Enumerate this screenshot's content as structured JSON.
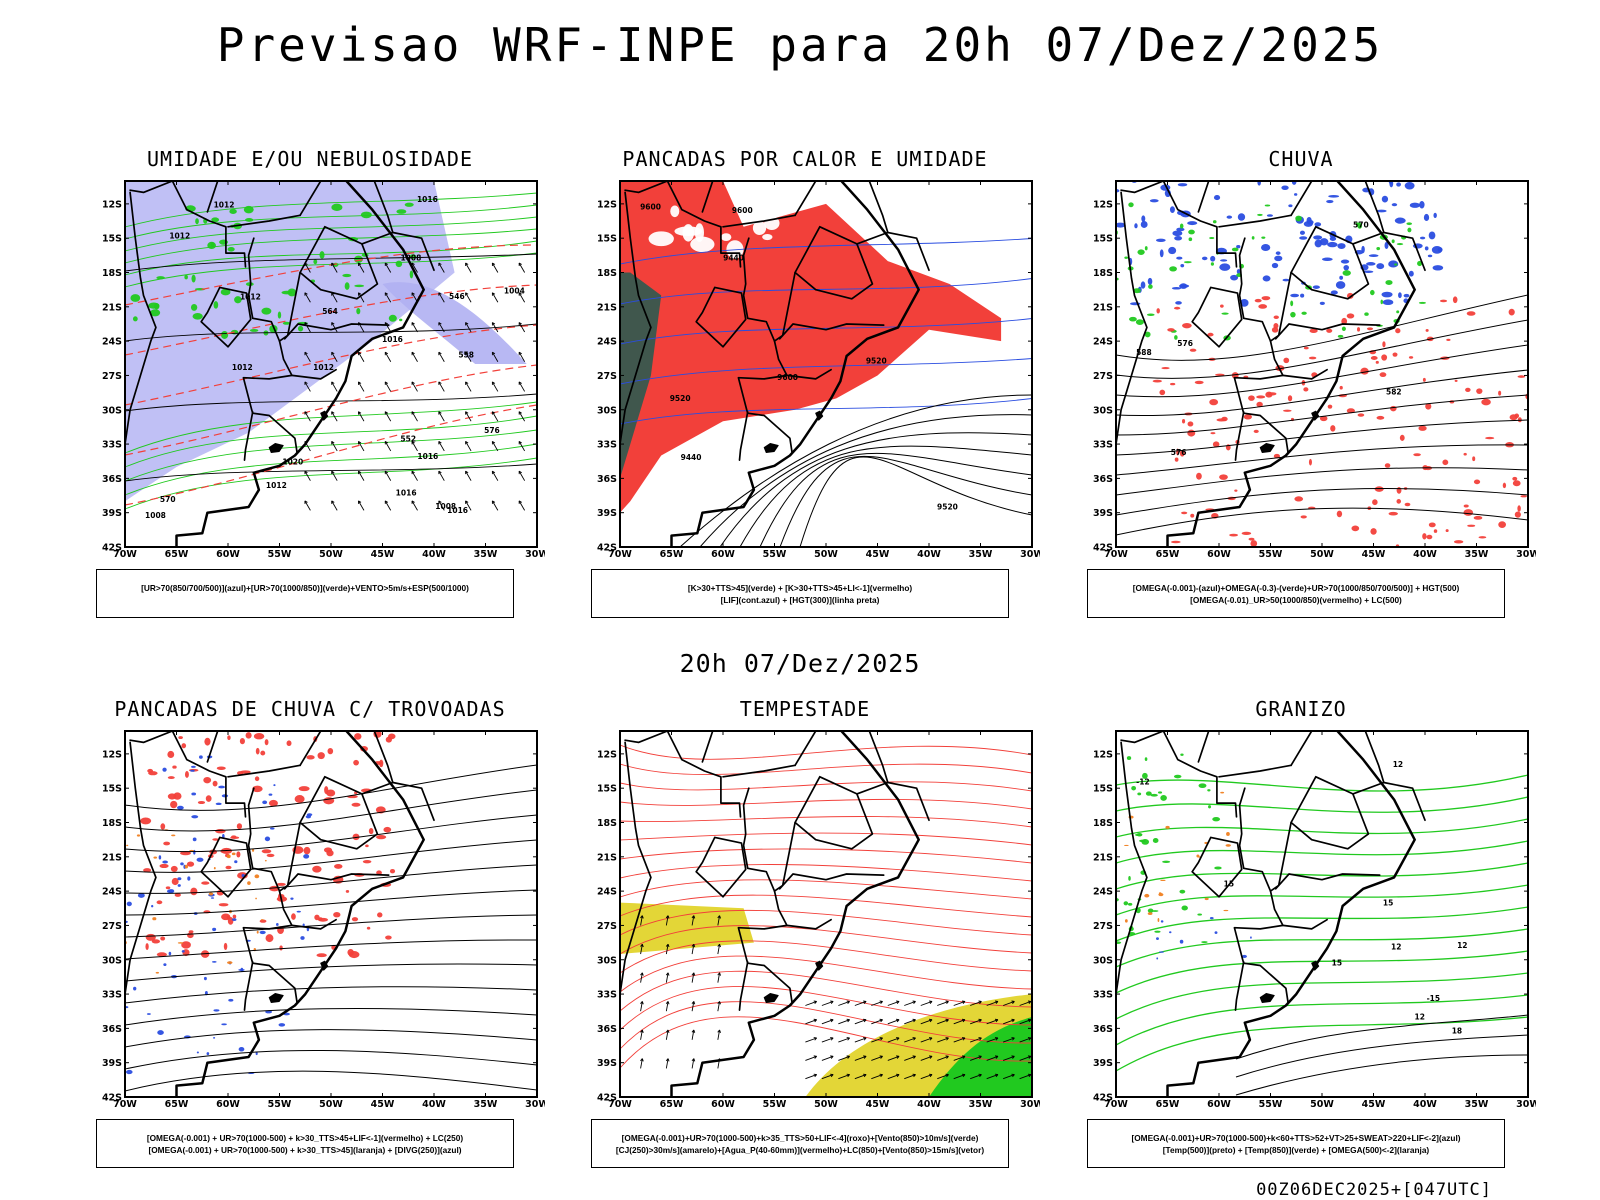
{
  "title": "Previsao WRF-INPE  para 20h 07/Dez/2025",
  "mid_label": "20h 07/Dez/2025",
  "run_label": "00Z06DEC2025+[047UTC]",
  "axes": {
    "lat_ticks": [
      "12S",
      "15S",
      "18S",
      "21S",
      "24S",
      "27S",
      "30S",
      "33S",
      "36S",
      "39S",
      "42S"
    ],
    "lon_ticks": [
      "70W",
      "65W",
      "60W",
      "55W",
      "50W",
      "45W",
      "40W",
      "35W",
      "30W"
    ]
  },
  "colors": {
    "green": "#21c91f",
    "red": "#f2403a",
    "blue": "#2a4de0",
    "lavender": "#b0b0f2",
    "darkgreen": "#2c5a50",
    "yellow": "#e3d637",
    "orange": "#f08020"
  },
  "panels": [
    {
      "id": "umidade",
      "title": "UMIDADE E/OU NEBULOSIDADE",
      "legend": [
        "[UR>70(850/700/500)](azul)+[UR>70(1000/850)](verde)+VENTO>5m/s+ESP(500/1000)"
      ],
      "contour_labels": [
        "1008",
        "1012",
        "1004",
        "1008",
        "1012",
        "1016",
        "1012",
        "1008",
        "1012",
        "1016",
        "1012",
        "1016",
        "1016",
        "1020",
        "1012",
        "1016",
        "576",
        "570",
        "564",
        "558",
        "552",
        "546"
      ]
    },
    {
      "id": "pancadas-calor",
      "title": "PANCADAS POR CALOR E UMIDADE",
      "legend": [
        "[K>30+TTS>45](verde) + [K>30+TTS>45+LI<-1](vermelho)",
        "[LIF](cont.azul) + [HGT(300)](linha preta)"
      ],
      "contour_labels": [
        "9600",
        "9600",
        "9600",
        "9520",
        "9520",
        "9520",
        "9440",
        "9440"
      ]
    },
    {
      "id": "chuva",
      "title": "CHUVA",
      "legend": [
        "[OMEGA(-0.001)-(azul)+OMEGA(-0.3)-(verde)+UR>70(1000/850/700/500)] + HGT(500)",
        "[OMEGA(-0.01)_UR>50(1000/850)(vermelho) + LC(500)"
      ],
      "contour_labels": [
        "588",
        "582",
        "576",
        "570",
        "576"
      ]
    },
    {
      "id": "trovoadas",
      "title": "PANCADAS DE CHUVA C/ TROVOADAS",
      "legend": [
        "[OMEGA(-0.001) + UR>70(1000-500) + k>30_TTS>45+LIF<-1](vermelho) + LC(250)",
        "[OMEGA(-0.001) + UR>70(1000-500) + k>30_TTS>45](laranja) + [DIVG(250)](azul)"
      ],
      "contour_labels": []
    },
    {
      "id": "tempestade",
      "title": "TEMPESTADE",
      "legend": [
        "[OMEGA(-0.001)+UR>70(1000-500)+k>35_TTS>50+LIF<-4](roxo)+[Vento(850)>10m/s](verde)",
        "[CJ(250)>30m/s](amarelo)+[Agua_P(40-60mm)](vermelho)+LC(850)+[Vento(850)>15m/s](vetor)"
      ],
      "contour_labels": []
    },
    {
      "id": "granizo",
      "title": "GRANIZO",
      "legend": [
        "[OMEGA(-0.001)+UR>70(1000-500)+k<60+TTS>52+VT>25+SWEAT>220+LIF<-2](azul)",
        "[Temp(500)](preto) + [Temp(850)](verde) + [OMEGA(500)<-2](laranja)"
      ],
      "contour_labels": [
        "-12",
        "-15",
        "12",
        "15",
        "15",
        "12",
        "18",
        "12",
        "15",
        "12"
      ]
    }
  ]
}
